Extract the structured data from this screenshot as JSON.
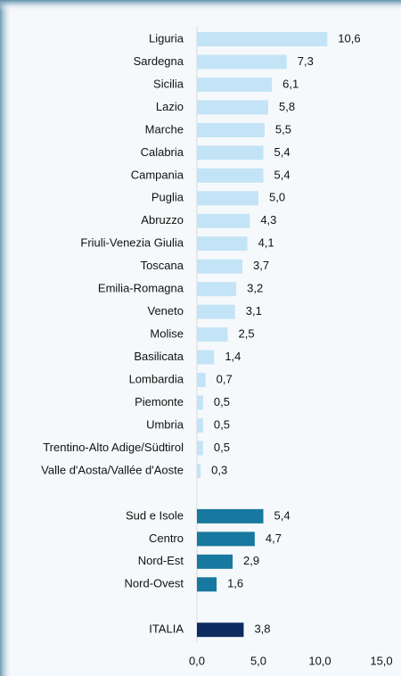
{
  "chart_data": {
    "type": "bar",
    "orientation": "horizontal",
    "categories": [
      "Liguria",
      "Sardegna",
      "Sicilia",
      "Lazio",
      "Marche",
      "Calabria",
      "Campania",
      "Puglia",
      "Abruzzo",
      "Friuli-Venezia Giulia",
      "Toscana",
      "Emilia-Romagna",
      "Veneto",
      "Molise",
      "Basilicata",
      "Lombardia",
      "Piemonte",
      "Umbria",
      "Trentino-Alto Adige/Südtirol",
      "Valle d'Aosta/Vallée d'Aoste",
      null,
      "Sud e Isole",
      "Centro",
      "Nord-Est",
      "Nord-Ovest",
      null,
      "ITALIA"
    ],
    "values": [
      10.6,
      7.3,
      6.1,
      5.8,
      5.5,
      5.4,
      5.4,
      5.0,
      4.3,
      4.1,
      3.7,
      3.2,
      3.1,
      2.5,
      1.4,
      0.7,
      0.5,
      0.5,
      0.5,
      0.3,
      null,
      5.4,
      4.7,
      2.9,
      1.6,
      null,
      3.8
    ],
    "value_labels": [
      "10,6",
      "7,3",
      "6,1",
      "5,8",
      "5,5",
      "5,4",
      "5,4",
      "5,0",
      "4,3",
      "4,1",
      "3,7",
      "3,2",
      "3,1",
      "2,5",
      "1,4",
      "0,7",
      "0,5",
      "0,5",
      "0,5",
      "0,3",
      null,
      "5,4",
      "4,7",
      "2,9",
      "1,6",
      null,
      "3,8"
    ],
    "colors": [
      "#c3e4f6",
      "#c3e4f6",
      "#c3e4f6",
      "#c3e4f6",
      "#c3e4f6",
      "#c3e4f6",
      "#c3e4f6",
      "#c3e4f6",
      "#c3e4f6",
      "#c3e4f6",
      "#c3e4f6",
      "#c3e4f6",
      "#c3e4f6",
      "#c3e4f6",
      "#c3e4f6",
      "#c3e4f6",
      "#c3e4f6",
      "#c3e4f6",
      "#c3e4f6",
      "#c3e4f6",
      null,
      "#17799f",
      "#17799f",
      "#17799f",
      "#17799f",
      null,
      "#0e2b60"
    ],
    "xlim": [
      0,
      15
    ],
    "xticks": [
      {
        "value": 0,
        "label": "0,0"
      },
      {
        "value": 5,
        "label": "5,0"
      },
      {
        "value": 10,
        "label": "10,0"
      },
      {
        "value": 15,
        "label": "15,0"
      }
    ],
    "grid": false
  }
}
